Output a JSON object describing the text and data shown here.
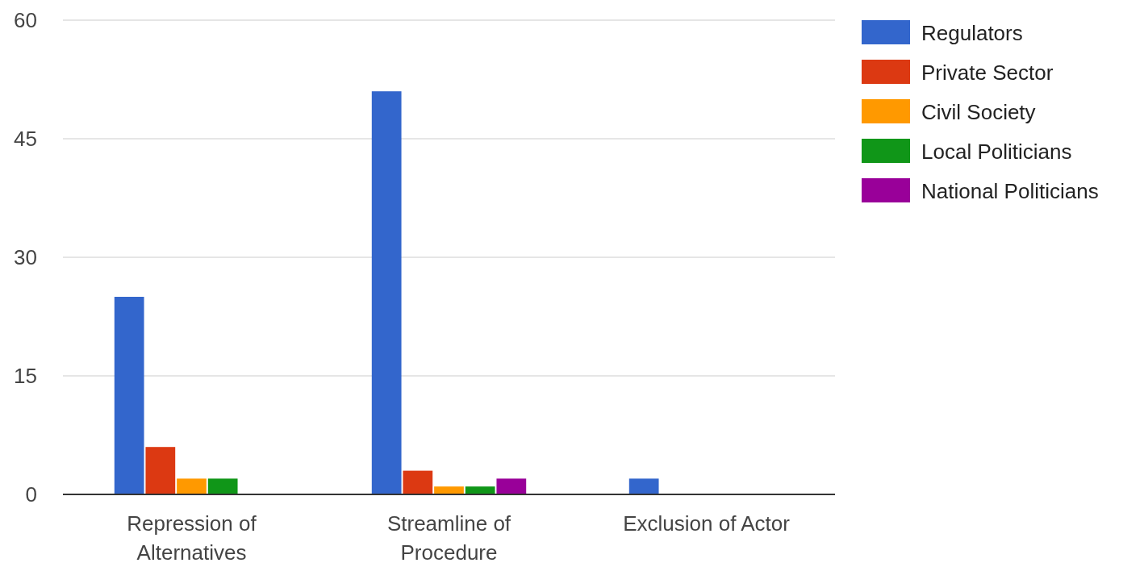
{
  "chart_data": {
    "type": "bar",
    "categories": [
      "Repression of Alternatives",
      "Streamline of Procedure",
      "Exclusion of Actor"
    ],
    "series": [
      {
        "name": "Regulators",
        "color": "#3366cc",
        "values": [
          25,
          51,
          2
        ]
      },
      {
        "name": "Private Sector",
        "color": "#dc3912",
        "values": [
          6,
          3,
          0
        ]
      },
      {
        "name": "Civil Society",
        "color": "#ff9900",
        "values": [
          2,
          1,
          0
        ]
      },
      {
        "name": "Local Politicians",
        "color": "#109618",
        "values": [
          2,
          1,
          0
        ]
      },
      {
        "name": "National Politicians",
        "color": "#990099",
        "values": [
          0,
          2,
          0
        ]
      }
    ],
    "ylim": [
      0,
      60
    ],
    "yticks": [
      0,
      15,
      30,
      45,
      60
    ],
    "grid": "y",
    "legend": "right"
  }
}
